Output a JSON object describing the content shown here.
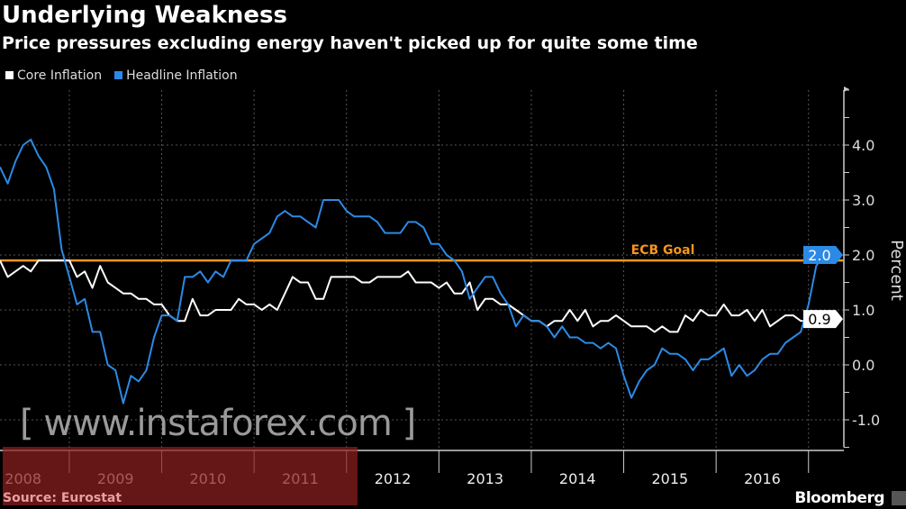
{
  "header": {
    "title": "Underlying Weakness",
    "subtitle": "Price pressures excluding energy haven't picked up for quite some time"
  },
  "legend": [
    {
      "label": "Core Inflation",
      "color": "#ffffff"
    },
    {
      "label": "Headline Inflation",
      "color": "#2b8ae6"
    }
  ],
  "footer": {
    "source": "Source: Eurostat",
    "logo": "Bloomberg",
    "watermark": "[ www.instaforex.com ]"
  },
  "chart_data": {
    "type": "line",
    "title": "Underlying Weakness",
    "ylabel": "Percent",
    "ylim": [
      -1.5,
      5.0
    ],
    "yticks": [
      "4.0",
      "3.0",
      "2.0",
      "1.0",
      "0.0",
      "-1.0"
    ],
    "x_start": "2008-03",
    "x_end": "2017-02",
    "frequency": "monthly",
    "xticks": [
      "2008",
      "2009",
      "2010",
      "2011",
      "2012",
      "2013",
      "2014",
      "2015",
      "2016"
    ],
    "grid": true,
    "legend_position": "top-left",
    "reference_line": {
      "label": "ECB Goal",
      "value": 1.9,
      "color": "#f5951e"
    },
    "end_labels": {
      "headline": "2.0",
      "core": "0.9"
    },
    "series": [
      {
        "name": "Core Inflation",
        "color": "#ffffff",
        "values": [
          1.9,
          1.6,
          1.7,
          1.8,
          1.7,
          1.9,
          1.9,
          1.9,
          1.9,
          1.9,
          1.6,
          1.7,
          1.4,
          1.8,
          1.5,
          1.4,
          1.3,
          1.3,
          1.2,
          1.2,
          1.1,
          1.1,
          0.9,
          0.8,
          0.8,
          1.2,
          0.9,
          0.9,
          1.0,
          1.0,
          1.0,
          1.2,
          1.1,
          1.1,
          1.0,
          1.1,
          1.0,
          1.3,
          1.6,
          1.5,
          1.5,
          1.2,
          1.2,
          1.6,
          1.6,
          1.6,
          1.6,
          1.5,
          1.5,
          1.6,
          1.6,
          1.6,
          1.6,
          1.7,
          1.5,
          1.5,
          1.5,
          1.4,
          1.5,
          1.3,
          1.3,
          1.5,
          1.0,
          1.2,
          1.2,
          1.1,
          1.1,
          1.0,
          0.9,
          0.8,
          0.8,
          0.7,
          0.8,
          0.8,
          1.0,
          0.8,
          1.0,
          0.7,
          0.8,
          0.8,
          0.9,
          0.8,
          0.7,
          0.7,
          0.7,
          0.6,
          0.7,
          0.6,
          0.6,
          0.9,
          0.8,
          1.0,
          0.9,
          0.9,
          1.1,
          0.9,
          0.9,
          1.0,
          0.8,
          1.0,
          0.7,
          0.8,
          0.9,
          0.9,
          0.8,
          0.8,
          0.9,
          0.9
        ]
      },
      {
        "name": "Headline Inflation",
        "color": "#2b8ae6",
        "values": [
          3.6,
          3.3,
          3.7,
          4.0,
          4.1,
          3.8,
          3.6,
          3.2,
          2.1,
          1.6,
          1.1,
          1.2,
          0.6,
          0.6,
          0.0,
          -0.1,
          -0.7,
          -0.2,
          -0.3,
          -0.1,
          0.5,
          0.9,
          0.9,
          0.8,
          1.6,
          1.6,
          1.7,
          1.5,
          1.7,
          1.6,
          1.9,
          1.9,
          1.9,
          2.2,
          2.3,
          2.4,
          2.7,
          2.8,
          2.7,
          2.7,
          2.6,
          2.5,
          3.0,
          3.0,
          3.0,
          2.8,
          2.7,
          2.7,
          2.7,
          2.6,
          2.4,
          2.4,
          2.4,
          2.6,
          2.6,
          2.5,
          2.2,
          2.2,
          2.0,
          1.9,
          1.7,
          1.2,
          1.4,
          1.6,
          1.6,
          1.3,
          1.1,
          0.7,
          0.9,
          0.8,
          0.8,
          0.7,
          0.5,
          0.7,
          0.5,
          0.5,
          0.4,
          0.4,
          0.3,
          0.4,
          0.3,
          -0.2,
          -0.6,
          -0.3,
          -0.1,
          0.0,
          0.3,
          0.2,
          0.2,
          0.1,
          -0.1,
          0.1,
          0.1,
          0.2,
          0.3,
          -0.2,
          0.0,
          -0.2,
          -0.1,
          0.1,
          0.2,
          0.2,
          0.4,
          0.5,
          0.6,
          1.1,
          1.8,
          2.0
        ]
      }
    ]
  }
}
